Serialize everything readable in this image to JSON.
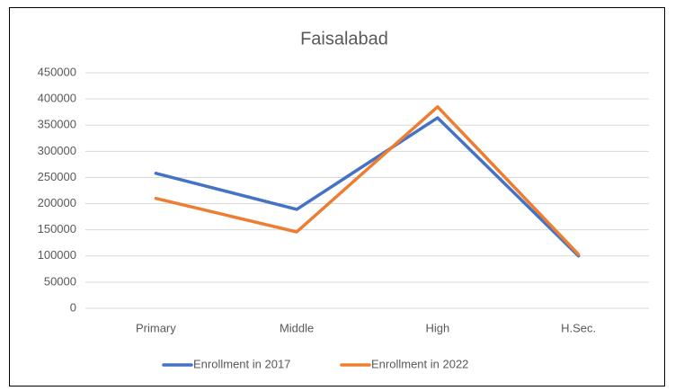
{
  "chart_data": {
    "type": "line",
    "title": "Faisalabad",
    "categories": [
      "Primary",
      "Middle",
      "High",
      "H.Sec."
    ],
    "series": [
      {
        "name": "Enrollment in 2017",
        "color": "#4472c4",
        "values": [
          258000,
          189000,
          364000,
          100000
        ]
      },
      {
        "name": "Enrollment in 2022",
        "color": "#ed7d31",
        "values": [
          210000,
          146000,
          385000,
          103000
        ]
      }
    ],
    "ylim": [
      0,
      450000
    ],
    "yticks": [
      0,
      50000,
      100000,
      150000,
      200000,
      250000,
      300000,
      350000,
      400000,
      450000
    ],
    "grid": true,
    "legend": "bottom"
  }
}
